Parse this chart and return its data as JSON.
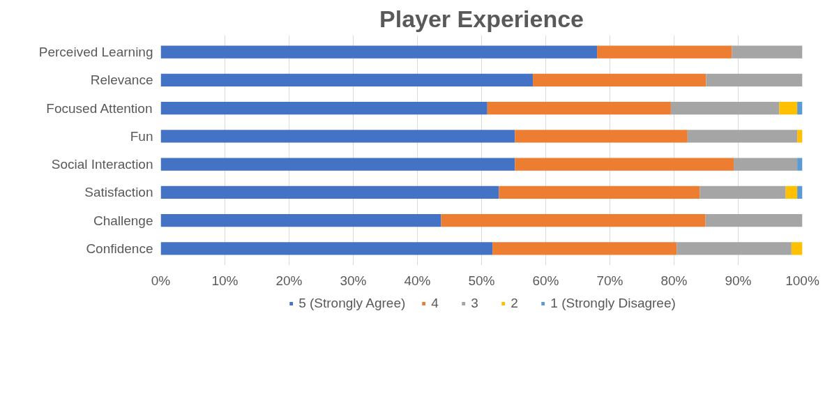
{
  "chart_data": {
    "type": "bar",
    "orientation": "horizontal",
    "stacked": true,
    "title": "Player Experience",
    "categories": [
      "Perceived Learning",
      "Relevance",
      "Focused Attention",
      "Fun",
      "Social Interaction",
      "Satisfaction",
      "Challenge",
      "Confidence"
    ],
    "series": [
      {
        "name": "5 (Strongly Agree)",
        "color": "#4472c4",
        "values": [
          68,
          58,
          50.9,
          55.2,
          55.2,
          52.7,
          43.7,
          51.7
        ]
      },
      {
        "name": "4",
        "color": "#ed7d31",
        "values": [
          21,
          27,
          28.6,
          26.9,
          34.1,
          31.3,
          41.2,
          28.7
        ]
      },
      {
        "name": "3",
        "color": "#a5a5a5",
        "values": [
          11,
          15,
          16.9,
          17.1,
          9.9,
          13.4,
          15.1,
          17.9
        ]
      },
      {
        "name": "2",
        "color": "#ffc000",
        "values": [
          0,
          0,
          2.8,
          0.8,
          0,
          1.8,
          0,
          1.7
        ]
      },
      {
        "name": "1 (Strongly Disagree)",
        "color": "#5b9bd5",
        "values": [
          0,
          0,
          0.8,
          0,
          0.8,
          0.8,
          0,
          0
        ]
      }
    ],
    "xlim": [
      0,
      100
    ],
    "xticks": [
      {
        "value": 0,
        "label": "0%"
      },
      {
        "value": 10,
        "label": "10%"
      },
      {
        "value": 20,
        "label": "20%"
      },
      {
        "value": 30,
        "label": "30%"
      },
      {
        "value": 40,
        "label": "40%"
      },
      {
        "value": 50,
        "label": "50%"
      },
      {
        "value": 60,
        "label": "60%"
      },
      {
        "value": 70,
        "label": "70%"
      },
      {
        "value": 80,
        "label": "80%"
      },
      {
        "value": 90,
        "label": "90%"
      },
      {
        "value": 100,
        "label": "100%"
      }
    ],
    "grid": "x",
    "legend": "bottom"
  }
}
